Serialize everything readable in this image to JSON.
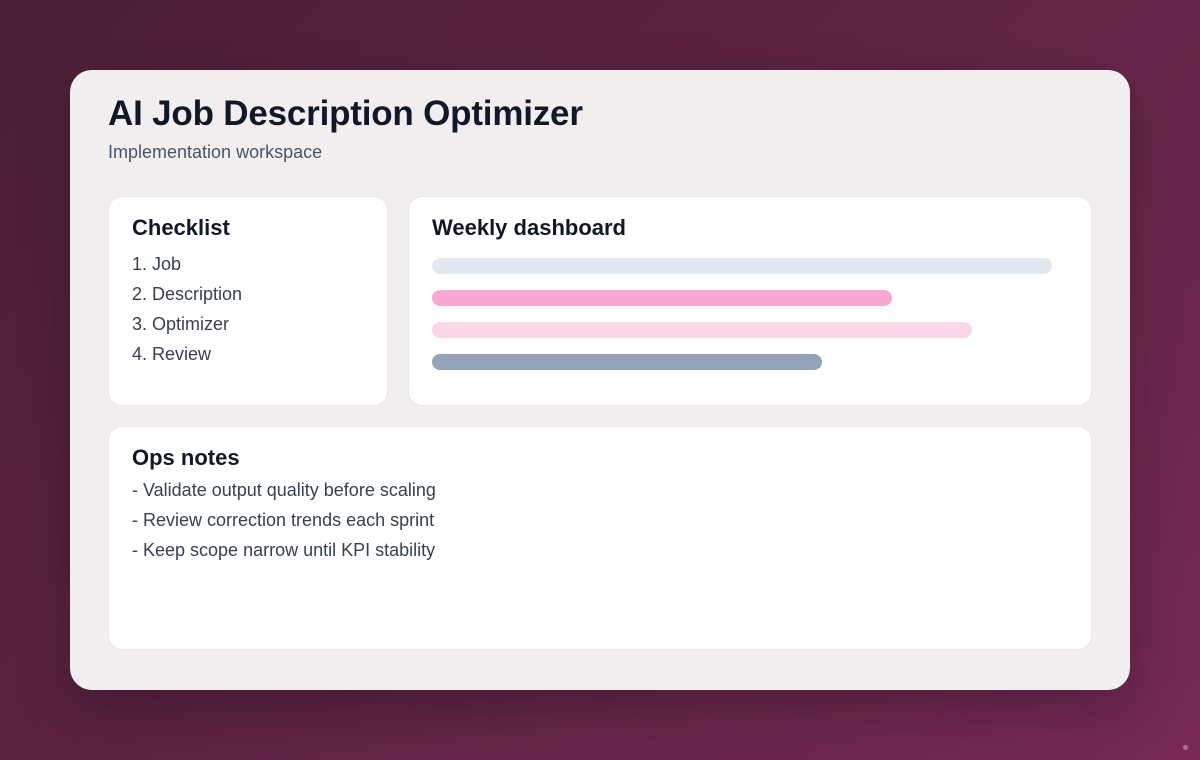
{
  "header": {
    "title": "AI Job Description Optimizer",
    "subtitle": "Implementation workspace"
  },
  "checklist": {
    "title": "Checklist",
    "items": [
      "1. Job",
      "2. Description",
      "3. Optimizer",
      "4. Review"
    ]
  },
  "dashboard": {
    "title": "Weekly dashboard",
    "bars": [
      {
        "fill": 1.0,
        "color": "#e2e8f0"
      },
      {
        "fill": 0.742,
        "color": "#f9a8d4"
      },
      {
        "fill": 0.871,
        "color": "#fbd5e8"
      },
      {
        "fill": 0.629,
        "color": "#94a3b8"
      }
    ]
  },
  "notes": {
    "title": "Ops notes",
    "items": [
      "- Validate output quality before scaling",
      "- Review correction trends each sprint",
      "- Keep scope narrow until KPI stability"
    ]
  }
}
